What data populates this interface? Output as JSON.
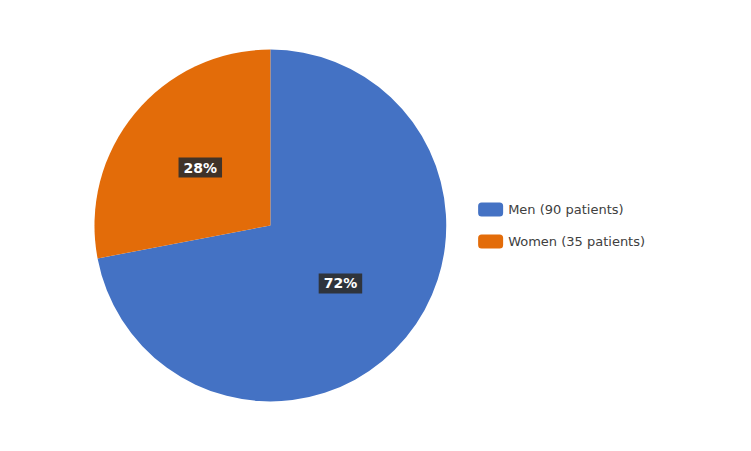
{
  "chart_data": {
    "type": "pie",
    "categories": [
      "Men (90 patients)",
      "Women (35 patients)"
    ],
    "values": [
      72,
      28
    ],
    "value_labels": [
      "72%",
      "28%"
    ],
    "colors": [
      "#4472C4",
      "#E36C09"
    ],
    "data_labels": true,
    "legend": "right"
  }
}
